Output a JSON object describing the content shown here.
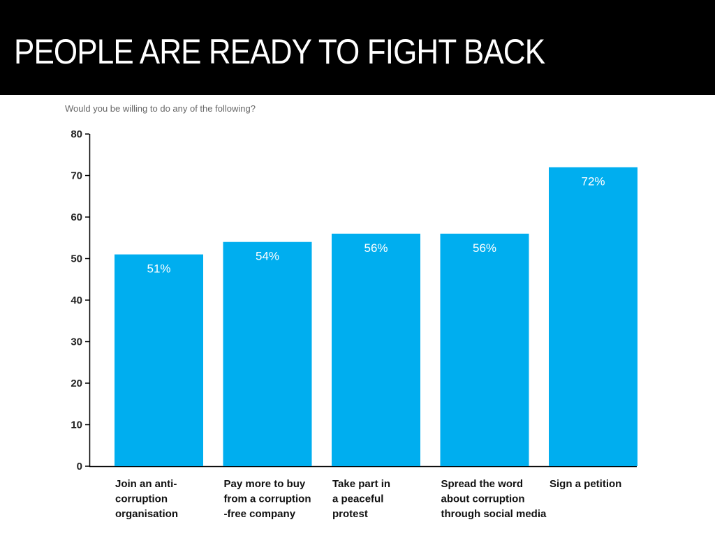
{
  "header": {
    "title": "PEOPLE ARE READY TO FIGHT BACK"
  },
  "chart_data": {
    "type": "bar",
    "subtitle": "Would you be willing to do any of the following?",
    "categories": [
      [
        "Join an anti-",
        "corruption",
        "organisation"
      ],
      [
        "Pay more to buy",
        "from a corruption",
        "-free company"
      ],
      [
        "Take part in",
        "a peaceful",
        "protest"
      ],
      [
        "Spread the word",
        "about corruption",
        "through social media"
      ],
      [
        "Sign a petition"
      ]
    ],
    "values": [
      51,
      54,
      56,
      56,
      72
    ],
    "data_labels": [
      "51%",
      "54%",
      "56%",
      "56%",
      "72%"
    ],
    "yticks": [
      "0",
      "10",
      "20",
      "30",
      "40",
      "50",
      "60",
      "70",
      "80"
    ],
    "ylim": [
      0,
      80
    ],
    "bar_color": "#00AEEF",
    "grid": false,
    "legend": "none"
  }
}
